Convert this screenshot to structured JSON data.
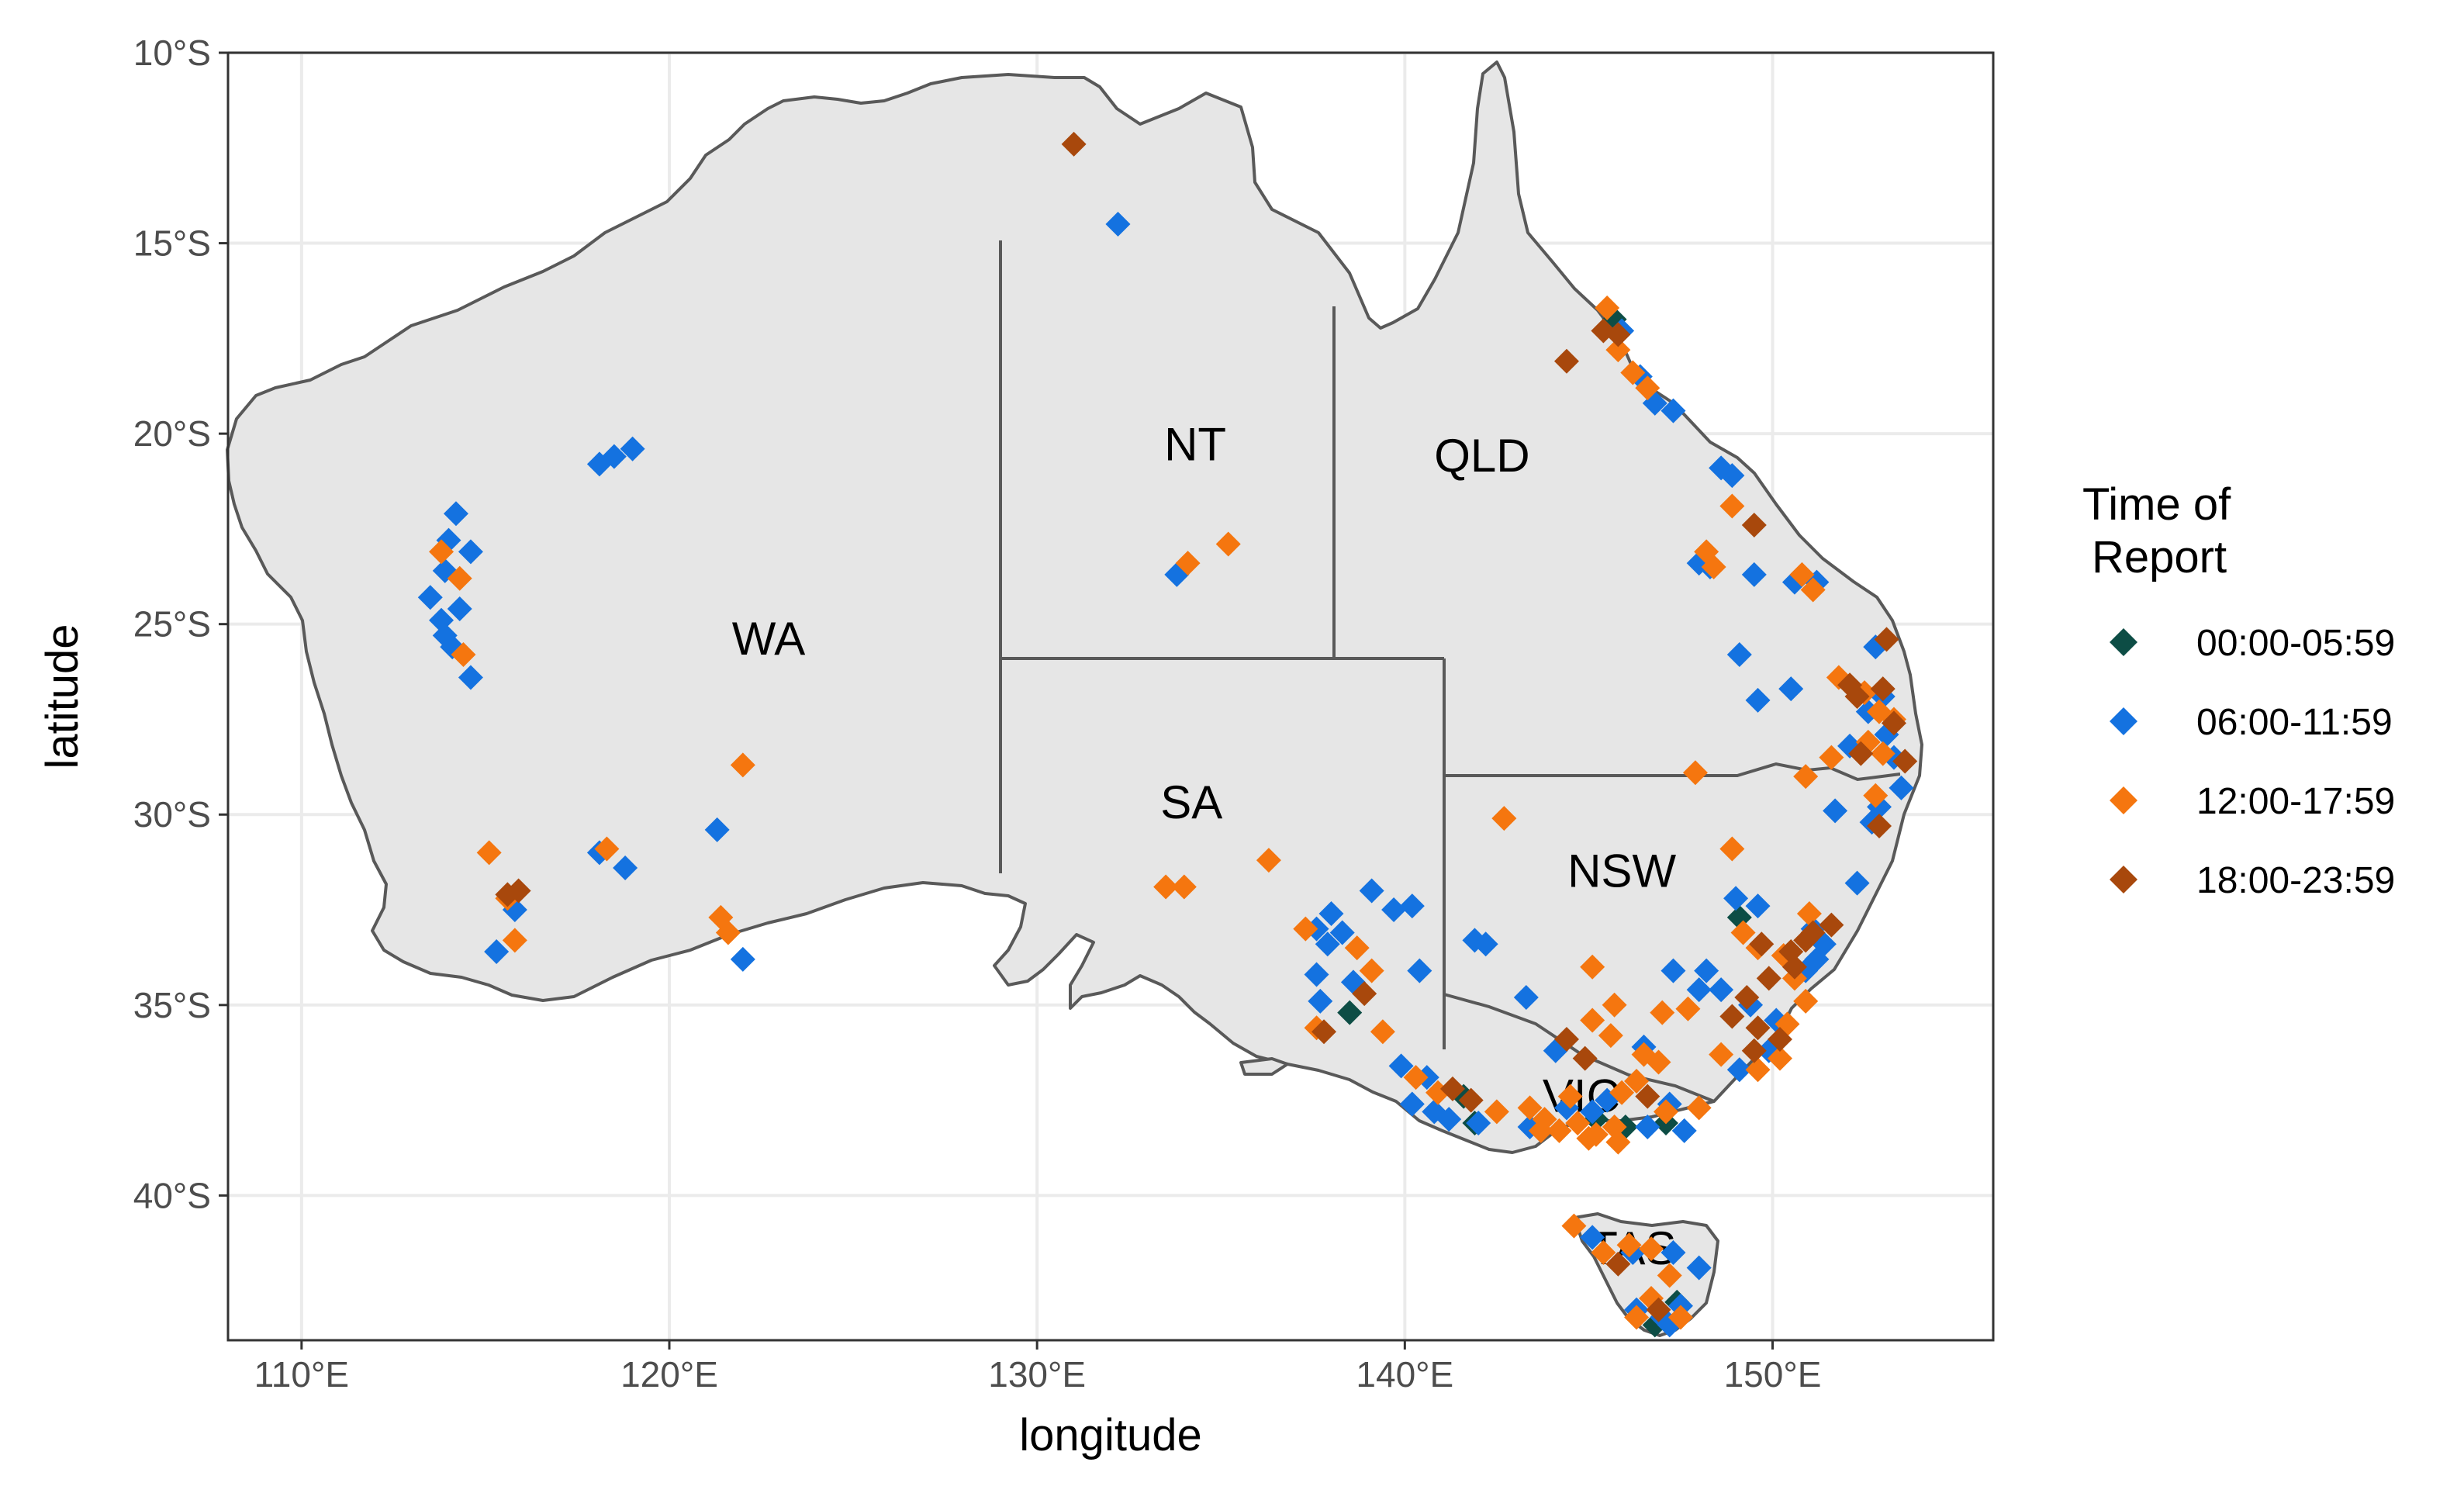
{
  "chart_data": {
    "type": "scatter",
    "xlabel": "longitude",
    "ylabel": "latitude",
    "xlim": [
      108,
      156
    ],
    "ylim": [
      -43.8,
      -10
    ],
    "x_ticks": [
      {
        "value": 110,
        "label": "110°E"
      },
      {
        "value": 120,
        "label": "120°E"
      },
      {
        "value": 130,
        "label": "130°E"
      },
      {
        "value": 140,
        "label": "140°E"
      },
      {
        "value": 150,
        "label": "150°E"
      }
    ],
    "y_ticks": [
      {
        "value": -10,
        "label": "10°S"
      },
      {
        "value": -15,
        "label": "15°S"
      },
      {
        "value": -20,
        "label": "20°S"
      },
      {
        "value": -25,
        "label": "25°S"
      },
      {
        "value": -30,
        "label": "30°S"
      },
      {
        "value": -35,
        "label": "35°S"
      },
      {
        "value": -40,
        "label": "40°S"
      }
    ],
    "grid": true,
    "legend": {
      "title_lines": [
        "Time of",
        "Report"
      ],
      "placement": "right"
    },
    "state_labels": [
      {
        "label": "WA",
        "lon": 122.7,
        "lat": -25.8
      },
      {
        "label": "NT",
        "lon": 134.3,
        "lat": -20.7
      },
      {
        "label": "QLD",
        "lon": 142.1,
        "lat": -21.0
      },
      {
        "label": "SA",
        "lon": 134.2,
        "lat": -30.1
      },
      {
        "label": "NSW",
        "lon": 145.9,
        "lat": -31.9
      },
      {
        "label": "VIC",
        "lon": 144.8,
        "lat": -37.8
      },
      {
        "label": "TAS",
        "lon": 146.2,
        "lat": -41.8
      }
    ],
    "series": [
      {
        "name": "00:00-05:59",
        "color": "#0d4d45",
        "points": [
          [
            145.7,
            -17.0
          ],
          [
            138.5,
            -35.2
          ],
          [
            141.6,
            -37.4
          ],
          [
            141.9,
            -38.1
          ],
          [
            147.1,
            -38.1
          ],
          [
            145.2,
            -38.0
          ],
          [
            146.0,
            -38.2
          ],
          [
            149.1,
            -32.7
          ],
          [
            147.4,
            -42.8
          ],
          [
            146.8,
            -43.4
          ]
        ]
      },
      {
        "name": "06:00-11:59",
        "color": "#1472e0",
        "points": [
          [
            132.2,
            -14.5
          ],
          [
            133.8,
            -23.7
          ],
          [
            113.5,
            -24.3
          ],
          [
            113.8,
            -24.9
          ],
          [
            113.9,
            -25.3
          ],
          [
            114.0,
            -22.8
          ],
          [
            114.2,
            -22.1
          ],
          [
            114.6,
            -23.1
          ],
          [
            113.9,
            -23.6
          ],
          [
            114.3,
            -24.6
          ],
          [
            114.6,
            -26.4
          ],
          [
            114.1,
            -25.6
          ],
          [
            115.3,
            -33.6
          ],
          [
            115.8,
            -32.5
          ],
          [
            118.1,
            -31.0
          ],
          [
            118.8,
            -31.4
          ],
          [
            121.3,
            -30.4
          ],
          [
            122.0,
            -33.8
          ],
          [
            118.1,
            -20.8
          ],
          [
            118.5,
            -20.6
          ],
          [
            119.0,
            -20.4
          ],
          [
            145.9,
            -17.3
          ],
          [
            146.4,
            -18.5
          ],
          [
            146.8,
            -19.2
          ],
          [
            147.3,
            -19.4
          ],
          [
            148.6,
            -20.9
          ],
          [
            148.9,
            -21.1
          ],
          [
            148.0,
            -23.4
          ],
          [
            148.3,
            -23.5
          ],
          [
            149.5,
            -23.7
          ],
          [
            150.6,
            -23.9
          ],
          [
            151.2,
            -23.9
          ],
          [
            152.8,
            -25.6
          ],
          [
            153.0,
            -26.9
          ],
          [
            152.6,
            -27.3
          ],
          [
            153.1,
            -27.9
          ],
          [
            152.1,
            -28.2
          ],
          [
            153.3,
            -28.5
          ],
          [
            153.5,
            -29.3
          ],
          [
            152.9,
            -29.8
          ],
          [
            152.7,
            -30.2
          ],
          [
            151.7,
            -29.9
          ],
          [
            150.5,
            -26.7
          ],
          [
            149.1,
            -25.8
          ],
          [
            152.3,
            -31.8
          ],
          [
            151.1,
            -33.0
          ],
          [
            151.4,
            -33.4
          ],
          [
            150.9,
            -34.1
          ],
          [
            151.2,
            -33.8
          ],
          [
            149.0,
            -32.2
          ],
          [
            148.2,
            -34.1
          ],
          [
            147.3,
            -34.1
          ],
          [
            148.0,
            -34.6
          ],
          [
            148.6,
            -34.6
          ],
          [
            149.4,
            -35.0
          ],
          [
            150.1,
            -35.4
          ],
          [
            149.9,
            -36.2
          ],
          [
            149.6,
            -32.4
          ],
          [
            149.1,
            -36.7
          ],
          [
            139.1,
            -32.0
          ],
          [
            138.0,
            -32.6
          ],
          [
            137.6,
            -33.0
          ],
          [
            137.9,
            -33.4
          ],
          [
            138.3,
            -33.1
          ],
          [
            137.6,
            -34.2
          ],
          [
            138.6,
            -34.4
          ],
          [
            137.7,
            -34.9
          ],
          [
            139.7,
            -32.5
          ],
          [
            140.2,
            -32.4
          ],
          [
            140.4,
            -34.1
          ],
          [
            141.9,
            -33.3
          ],
          [
            142.2,
            -33.4
          ],
          [
            143.3,
            -34.8
          ],
          [
            139.9,
            -36.6
          ],
          [
            140.6,
            -36.9
          ],
          [
            140.2,
            -37.6
          ],
          [
            140.8,
            -37.8
          ],
          [
            141.2,
            -38.0
          ],
          [
            142.0,
            -38.1
          ],
          [
            143.4,
            -38.2
          ],
          [
            144.4,
            -37.7
          ],
          [
            145.1,
            -37.8
          ],
          [
            145.5,
            -37.5
          ],
          [
            146.6,
            -38.2
          ],
          [
            147.6,
            -38.3
          ],
          [
            147.2,
            -37.6
          ],
          [
            146.5,
            -36.1
          ],
          [
            145.1,
            -41.1
          ],
          [
            146.2,
            -41.5
          ],
          [
            147.3,
            -41.5
          ],
          [
            148.0,
            -41.9
          ],
          [
            147.5,
            -42.9
          ],
          [
            147.0,
            -43.2
          ],
          [
            146.3,
            -43.0
          ],
          [
            147.2,
            -43.4
          ],
          [
            144.1,
            -36.2
          ],
          [
            149.6,
            -27.0
          ]
        ]
      },
      {
        "name": "12:00-17:59",
        "color": "#f5760f",
        "points": [
          [
            134.1,
            -23.4
          ],
          [
            135.2,
            -22.9
          ],
          [
            122.0,
            -28.7
          ],
          [
            115.1,
            -31.0
          ],
          [
            115.6,
            -32.2
          ],
          [
            115.8,
            -33.3
          ],
          [
            118.3,
            -30.9
          ],
          [
            121.4,
            -32.7
          ],
          [
            121.6,
            -33.1
          ],
          [
            113.8,
            -23.1
          ],
          [
            114.3,
            -23.8
          ],
          [
            114.4,
            -25.8
          ],
          [
            145.5,
            -16.7
          ],
          [
            145.8,
            -17.8
          ],
          [
            146.2,
            -18.4
          ],
          [
            146.6,
            -18.8
          ],
          [
            148.2,
            -23.1
          ],
          [
            148.4,
            -23.5
          ],
          [
            148.9,
            -21.9
          ],
          [
            150.8,
            -23.7
          ],
          [
            151.1,
            -24.1
          ],
          [
            151.8,
            -26.4
          ],
          [
            152.5,
            -26.8
          ],
          [
            152.9,
            -27.3
          ],
          [
            153.3,
            -27.5
          ],
          [
            152.6,
            -28.1
          ],
          [
            153.0,
            -28.4
          ],
          [
            152.8,
            -29.5
          ],
          [
            151.6,
            -28.5
          ],
          [
            150.9,
            -29.0
          ],
          [
            147.9,
            -28.9
          ],
          [
            148.9,
            -30.9
          ],
          [
            142.7,
            -30.1
          ],
          [
            149.2,
            -33.1
          ],
          [
            149.6,
            -33.5
          ],
          [
            150.3,
            -33.7
          ],
          [
            151.0,
            -32.6
          ],
          [
            150.6,
            -34.3
          ],
          [
            150.9,
            -34.9
          ],
          [
            150.4,
            -35.5
          ],
          [
            150.2,
            -36.4
          ],
          [
            149.6,
            -36.7
          ],
          [
            148.6,
            -36.3
          ],
          [
            147.0,
            -35.2
          ],
          [
            147.7,
            -35.1
          ],
          [
            145.7,
            -35.0
          ],
          [
            145.1,
            -35.4
          ],
          [
            145.6,
            -35.8
          ],
          [
            145.1,
            -34.0
          ],
          [
            146.5,
            -36.3
          ],
          [
            146.9,
            -36.5
          ],
          [
            148.0,
            -37.7
          ],
          [
            145.2,
            -38.4
          ],
          [
            145.7,
            -38.2
          ],
          [
            144.7,
            -38.1
          ],
          [
            143.8,
            -38.0
          ],
          [
            143.4,
            -37.7
          ],
          [
            142.5,
            -37.8
          ],
          [
            144.2,
            -38.3
          ],
          [
            145.0,
            -38.5
          ],
          [
            145.8,
            -38.6
          ],
          [
            146.3,
            -37.0
          ],
          [
            145.9,
            -37.3
          ],
          [
            139.4,
            -35.7
          ],
          [
            139.1,
            -34.1
          ],
          [
            138.7,
            -33.5
          ],
          [
            137.3,
            -33.0
          ],
          [
            137.6,
            -35.6
          ],
          [
            136.3,
            -31.2
          ],
          [
            133.5,
            -31.9
          ],
          [
            134.0,
            -31.9
          ],
          [
            140.3,
            -36.9
          ],
          [
            140.9,
            -37.3
          ],
          [
            144.6,
            -40.8
          ],
          [
            145.4,
            -41.5
          ],
          [
            146.1,
            -41.3
          ],
          [
            146.7,
            -41.4
          ],
          [
            147.2,
            -42.1
          ],
          [
            146.7,
            -42.7
          ],
          [
            147.5,
            -43.2
          ],
          [
            146.3,
            -43.2
          ],
          [
            143.7,
            -38.3
          ],
          [
            147.1,
            -37.8
          ],
          [
            144.5,
            -37.4
          ]
        ]
      },
      {
        "name": "18:00-23:59",
        "color": "#a8480c",
        "points": [
          [
            131.0,
            -12.4
          ],
          [
            115.6,
            -32.1
          ],
          [
            115.9,
            -32.0
          ],
          [
            144.4,
            -18.1
          ],
          [
            145.4,
            -17.3
          ],
          [
            145.8,
            -17.4
          ],
          [
            149.5,
            -22.4
          ],
          [
            153.1,
            -25.4
          ],
          [
            152.1,
            -26.6
          ],
          [
            152.3,
            -26.9
          ],
          [
            153.0,
            -26.7
          ],
          [
            153.3,
            -27.6
          ],
          [
            153.6,
            -28.6
          ],
          [
            152.9,
            -30.3
          ],
          [
            151.6,
            -32.9
          ],
          [
            150.9,
            -33.3
          ],
          [
            150.6,
            -34.0
          ],
          [
            149.7,
            -33.4
          ],
          [
            149.9,
            -34.3
          ],
          [
            149.3,
            -34.8
          ],
          [
            148.9,
            -35.3
          ],
          [
            149.6,
            -35.6
          ],
          [
            150.2,
            -35.9
          ],
          [
            149.5,
            -36.2
          ],
          [
            144.4,
            -35.9
          ],
          [
            144.9,
            -36.4
          ],
          [
            146.6,
            -37.4
          ],
          [
            138.9,
            -34.7
          ],
          [
            137.8,
            -35.7
          ],
          [
            141.3,
            -37.2
          ],
          [
            141.8,
            -37.5
          ],
          [
            145.8,
            -41.8
          ],
          [
            146.9,
            -43.0
          ],
          [
            151.1,
            -33.1
          ],
          [
            150.5,
            -33.6
          ],
          [
            152.4,
            -28.4
          ]
        ]
      }
    ]
  }
}
